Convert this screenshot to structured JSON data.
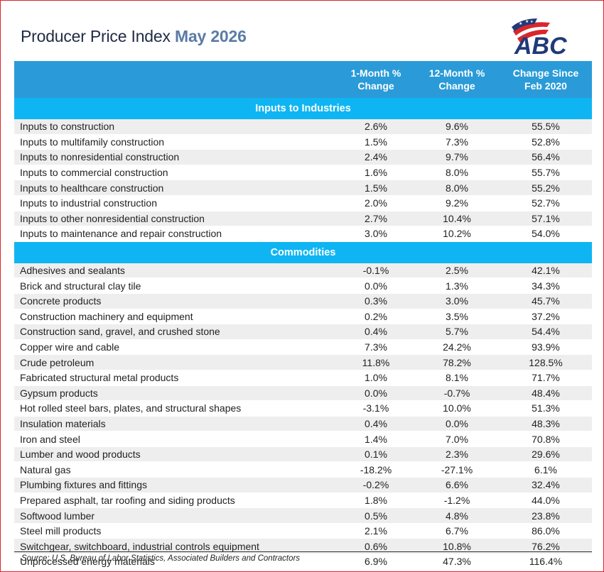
{
  "title": {
    "main": "Producer Price Index",
    "month": "May 2026"
  },
  "logo": {
    "text": "ABC",
    "mark": "flag-stars-stripes"
  },
  "columns": [
    "1-Month % Change",
    "12-Month % Change",
    "Change Since Feb 2020"
  ],
  "sections": [
    {
      "heading": "Inputs to Industries",
      "rows": [
        [
          "Inputs to construction",
          "2.6%",
          "9.6%",
          "55.5%"
        ],
        [
          "Inputs to multifamily construction",
          "1.5%",
          "7.3%",
          "52.8%"
        ],
        [
          "Inputs to nonresidential construction",
          "2.4%",
          "9.7%",
          "56.4%"
        ],
        [
          "Inputs to commercial construction",
          "1.6%",
          "8.0%",
          "55.7%"
        ],
        [
          "Inputs to healthcare construction",
          "1.5%",
          "8.0%",
          "55.2%"
        ],
        [
          "Inputs to industrial construction",
          "2.0%",
          "9.2%",
          "52.7%"
        ],
        [
          "Inputs to other nonresidential construction",
          "2.7%",
          "10.4%",
          "57.1%"
        ],
        [
          "Inputs to maintenance and repair construction",
          "3.0%",
          "10.2%",
          "54.0%"
        ]
      ]
    },
    {
      "heading": "Commodities",
      "rows": [
        [
          "Adhesives and sealants",
          "-0.1%",
          "2.5%",
          "42.1%"
        ],
        [
          "Brick and structural clay tile",
          "0.0%",
          "1.3%",
          "34.3%"
        ],
        [
          "Concrete products",
          "0.3%",
          "3.0%",
          "45.7%"
        ],
        [
          "Construction machinery and equipment",
          "0.2%",
          "3.5%",
          "37.2%"
        ],
        [
          "Construction sand, gravel, and crushed stone",
          "0.4%",
          "5.7%",
          "54.4%"
        ],
        [
          "Copper wire and cable",
          "7.3%",
          "24.2%",
          "93.9%"
        ],
        [
          "Crude petroleum",
          "11.8%",
          "78.2%",
          "128.5%"
        ],
        [
          "Fabricated structural metal products",
          "1.0%",
          "8.1%",
          "71.7%"
        ],
        [
          "Gypsum products",
          "0.0%",
          "-0.7%",
          "48.4%"
        ],
        [
          "Hot rolled steel bars, plates, and structural shapes",
          "-3.1%",
          "10.0%",
          "51.3%"
        ],
        [
          "Insulation materials",
          "0.4%",
          "0.0%",
          "48.3%"
        ],
        [
          "Iron and steel",
          "1.4%",
          "7.0%",
          "70.8%"
        ],
        [
          "Lumber and wood products",
          "0.1%",
          "2.3%",
          "29.6%"
        ],
        [
          "Natural gas",
          "-18.2%",
          "-27.1%",
          "6.1%"
        ],
        [
          "Plumbing fixtures and fittings",
          "-0.2%",
          "6.6%",
          "32.4%"
        ],
        [
          "Prepared asphalt, tar roofing and siding products",
          "1.8%",
          "-1.2%",
          "44.0%"
        ],
        [
          "Softwood lumber",
          "0.5%",
          "4.8%",
          "23.8%"
        ],
        [
          "Steel mill products",
          "2.1%",
          "6.7%",
          "86.0%"
        ],
        [
          "Switchgear, switchboard, industrial controls equipment",
          "0.6%",
          "10.8%",
          "76.2%"
        ],
        [
          "Unprocessed energy materials",
          "6.9%",
          "47.3%",
          "116.4%"
        ]
      ]
    }
  ],
  "source": "Source: U.S. Bureau of Labor Statistics, Associated Builders and Contractors",
  "colors": {
    "header": "#2a9bd8",
    "section": "#0fb5f2",
    "title_accent": "#5b7ba6",
    "logo_blue": "#1f3a7a",
    "logo_red": "#d9262c",
    "border": "#d9262c"
  }
}
